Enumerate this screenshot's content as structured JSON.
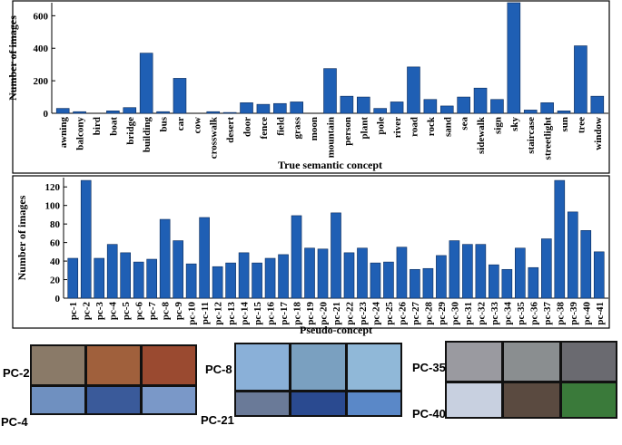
{
  "chart_data": [
    {
      "type": "bar",
      "x_label": "True semantic concept",
      "y_label": "Number of images",
      "color": "#1f5fb4",
      "categories": [
        "awning",
        "balcony",
        "bird",
        "boat",
        "bridge",
        "building",
        "bus",
        "car",
        "cow",
        "crosswalk",
        "desert",
        "door",
        "fence",
        "field",
        "grass",
        "moon",
        "mountain",
        "person",
        "plant",
        "pole",
        "river",
        "road",
        "rock",
        "sand",
        "sea",
        "sidewalk",
        "sign",
        "sky",
        "staircase",
        "streetlight",
        "sun",
        "tree",
        "window"
      ],
      "values": [
        30,
        10,
        0,
        15,
        35,
        370,
        10,
        215,
        0,
        10,
        5,
        65,
        55,
        60,
        70,
        0,
        275,
        105,
        100,
        30,
        70,
        285,
        85,
        45,
        100,
        155,
        85,
        680,
        20,
        65,
        15,
        415,
        105
      ],
      "ylim": [
        0,
        680
      ],
      "yticks": [
        0,
        200,
        400,
        600
      ],
      "grid": false
    },
    {
      "type": "bar",
      "x_label": "Pseudo-concept",
      "y_label": "Number of images",
      "color": "#1f5fb4",
      "categories": [
        "pc-1",
        "pc-2",
        "pc-3",
        "pc-4",
        "pc-5",
        "pc-6",
        "pc-7",
        "pc-8",
        "pc-9",
        "pc-10",
        "pc-11",
        "pc-12",
        "pc-13",
        "pc-14",
        "pc-15",
        "pc-16",
        "pc-17",
        "pc-18",
        "pc-19",
        "pc-20",
        "pc-21",
        "pc-22",
        "pc-23",
        "pc-24",
        "pc-25",
        "pc-26",
        "pc-27",
        "pc-28",
        "pc-29",
        "pc-30",
        "pc-31",
        "pc-32",
        "pc-33",
        "pc-34",
        "pc-35",
        "pc-36",
        "pc-37",
        "pc-38",
        "pc-39",
        "pc-40",
        "pc-41"
      ],
      "values": [
        43,
        127,
        43,
        58,
        49,
        39,
        42,
        85,
        62,
        37,
        87,
        34,
        38,
        49,
        38,
        43,
        47,
        89,
        54,
        53,
        92,
        49,
        54,
        38,
        39,
        55,
        31,
        32,
        46,
        62,
        58,
        58,
        36,
        31,
        54,
        33,
        64,
        127,
        93,
        73,
        50
      ],
      "ylim": [
        0,
        130
      ],
      "yticks": [
        0,
        20,
        40,
        60,
        80,
        100,
        120
      ],
      "grid": false
    }
  ],
  "thumbnails": {
    "labels": [
      "PC-2",
      "PC-4",
      "PC-8",
      "PC-21",
      "PC-35",
      "PC-40"
    ]
  }
}
